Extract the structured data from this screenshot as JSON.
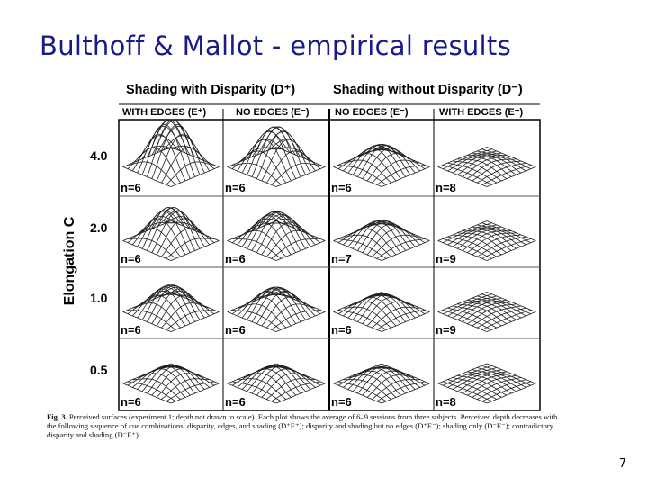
{
  "slide": {
    "title": "Bulthoff & Mallot - empirical results",
    "page_number": "7"
  },
  "figure": {
    "group_left": "Shading with Disparity (D⁺)",
    "group_right": "Shading without Disparity (D⁻)",
    "columns": [
      "WITH EDGES (E⁺)",
      "NO EDGES (E⁻)",
      "NO EDGES (E⁻)",
      "WITH EDGES (E⁺)"
    ],
    "y_label": "Elongation C",
    "rows": [
      {
        "value": "4.0",
        "n": [
          "n=6",
          "n=6",
          "n=6",
          "n=8"
        ],
        "heights": [
          1.0,
          0.85,
          0.45,
          0.15
        ]
      },
      {
        "value": "2.0",
        "n": [
          "n=6",
          "n=6",
          "n=7",
          "n=9"
        ],
        "heights": [
          0.7,
          0.6,
          0.4,
          0.15
        ]
      },
      {
        "value": "1.0",
        "n": [
          "n=6",
          "n=6",
          "n=6",
          "n=9"
        ],
        "heights": [
          0.55,
          0.5,
          0.35,
          0.12
        ]
      },
      {
        "value": "0.5",
        "n": [
          "n=6",
          "n=6",
          "n=6",
          "n=8"
        ],
        "heights": [
          0.35,
          0.35,
          0.3,
          0.1
        ]
      }
    ],
    "caption_label": "Fig. 3.",
    "caption_text": "Perceived surfaces (experiment 1; depth not drawn to scale). Each plot shows the average of 6–9 sessions from three subjects. Perceived depth decreases with the following sequence of cue combinations: disparity, edges, and shading (D⁺E⁺); disparity and shading but no edges (D⁺E⁻); shading only (D⁻E⁻); contradictory disparity and shading (D⁻E⁺)."
  }
}
